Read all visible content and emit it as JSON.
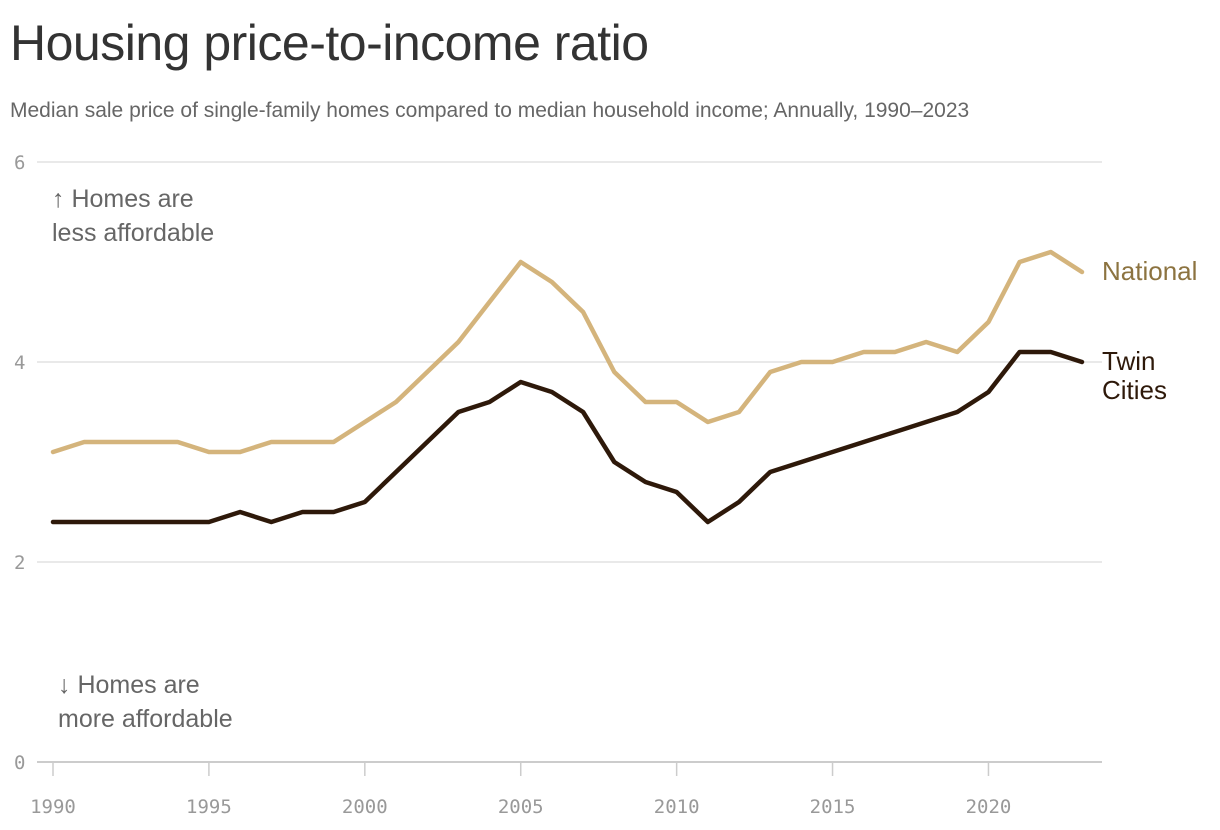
{
  "title": "Housing price-to-income ratio",
  "subtitle": "Median sale price of single-family homes compared to median household income; Annually, 1990–2023",
  "annotations": {
    "up_line1": "↑ Homes are",
    "up_line2": "less affordable",
    "down_line1": "↓ Homes are",
    "down_line2": "more affordable"
  },
  "colors": {
    "national": "#d4b47c",
    "national_label": "#8c7340",
    "twin_cities": "#2e190a",
    "grid": "#e2e2e2",
    "axis": "#cccccc"
  },
  "chart_data": {
    "type": "line",
    "title": "Housing price-to-income ratio",
    "subtitle": "Median sale price of single-family homes compared to median household income; Annually, 1990–2023",
    "xlabel": "",
    "ylabel": "",
    "xlim": [
      1990,
      2023
    ],
    "ylim": [
      0,
      6
    ],
    "grid": true,
    "legend": "direct labels at right end of lines",
    "y_ticks": [
      "0",
      "2",
      "4",
      "6"
    ],
    "x_ticks": [
      "1990",
      "1995",
      "2000",
      "2005",
      "2010",
      "2015",
      "2020"
    ],
    "x": [
      1990,
      1991,
      1992,
      1993,
      1994,
      1995,
      1996,
      1997,
      1998,
      1999,
      2000,
      2001,
      2002,
      2003,
      2004,
      2005,
      2006,
      2007,
      2008,
      2009,
      2010,
      2011,
      2012,
      2013,
      2014,
      2015,
      2016,
      2017,
      2018,
      2019,
      2020,
      2021,
      2022,
      2023
    ],
    "series": [
      {
        "name": "National",
        "label_lines": [
          "National"
        ],
        "values": [
          3.1,
          3.2,
          3.2,
          3.2,
          3.2,
          3.1,
          3.1,
          3.2,
          3.2,
          3.2,
          3.4,
          3.6,
          3.9,
          4.2,
          4.6,
          5.0,
          4.8,
          4.5,
          3.9,
          3.6,
          3.6,
          3.4,
          3.5,
          3.9,
          4.0,
          4.0,
          4.1,
          4.1,
          4.2,
          4.1,
          4.4,
          5.0,
          5.1,
          4.9
        ]
      },
      {
        "name": "Twin Cities",
        "label_lines": [
          "Twin",
          "Cities"
        ],
        "values": [
          2.4,
          2.4,
          2.4,
          2.4,
          2.4,
          2.4,
          2.5,
          2.4,
          2.5,
          2.5,
          2.6,
          2.9,
          3.2,
          3.5,
          3.6,
          3.8,
          3.7,
          3.5,
          3.0,
          2.8,
          2.7,
          2.4,
          2.6,
          2.9,
          3.0,
          3.1,
          3.2,
          3.3,
          3.4,
          3.5,
          3.7,
          4.1,
          4.1,
          4.0
        ]
      }
    ]
  }
}
